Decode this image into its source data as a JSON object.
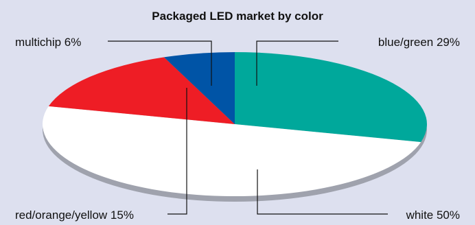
{
  "chart_data": {
    "type": "pie",
    "title": "Packaged LED market by color",
    "slices": [
      {
        "label": "blue/green",
        "value": 29,
        "display": "blue/green 29%",
        "color": "#00a89b"
      },
      {
        "label": "white",
        "value": 50,
        "display": "white 50%",
        "color": "#ffffff"
      },
      {
        "label": "red/orange/yellow",
        "value": 15,
        "display": "red/orange/yellow 15%",
        "color": "#ee1d25"
      },
      {
        "label": "multichip",
        "value": 6,
        "display": "multichip 6%",
        "color": "#0054a6"
      }
    ]
  }
}
